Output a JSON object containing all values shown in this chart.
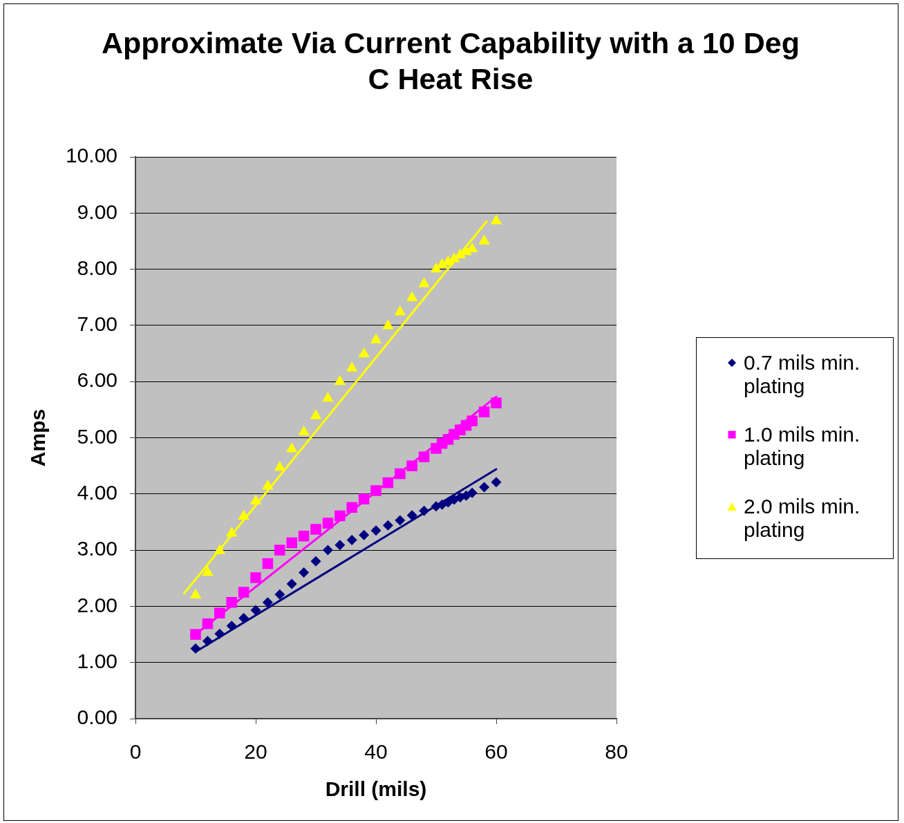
{
  "chart_data": {
    "type": "scatter",
    "title": "Approximate Via Current Capability with a 10 Deg C Heat Rise",
    "xlabel": "Drill (mils)",
    "ylabel": "Amps",
    "x": [
      10,
      12,
      14,
      16,
      18,
      20,
      22,
      24,
      26,
      28,
      30,
      32,
      34,
      36,
      38,
      40,
      42,
      44,
      46,
      48,
      50,
      51,
      52,
      53,
      54,
      55,
      56,
      58,
      60
    ],
    "series": [
      {
        "name": "0.7 mils min. plating",
        "color": "#000080",
        "marker": "diamond",
        "values": [
          1.25,
          1.38,
          1.51,
          1.65,
          1.79,
          1.93,
          2.07,
          2.21,
          2.4,
          2.6,
          2.8,
          3.0,
          3.09,
          3.18,
          3.27,
          3.35,
          3.44,
          3.53,
          3.62,
          3.7,
          3.78,
          3.81,
          3.85,
          3.9,
          3.94,
          3.97,
          4.02,
          4.12,
          4.21
        ]
      },
      {
        "name": "1.0 mils min. plating",
        "color": "#ff00ff",
        "marker": "square",
        "values": [
          1.5,
          1.69,
          1.88,
          2.07,
          2.25,
          2.51,
          2.76,
          3.0,
          3.13,
          3.25,
          3.37,
          3.48,
          3.61,
          3.76,
          3.91,
          4.06,
          4.2,
          4.36,
          4.5,
          4.66,
          4.81,
          4.9,
          4.97,
          5.06,
          5.14,
          5.22,
          5.3,
          5.46,
          5.62
        ]
      },
      {
        "name": "2.0 mils min. plating",
        "color": "#ffff00",
        "marker": "triangle",
        "values": [
          2.2,
          2.6,
          2.99,
          3.3,
          3.6,
          3.87,
          4.14,
          4.47,
          4.8,
          5.1,
          5.39,
          5.7,
          6.0,
          6.24,
          6.49,
          6.74,
          6.99,
          7.24,
          7.49,
          7.74,
          8.0,
          8.08,
          8.13,
          8.18,
          8.25,
          8.31,
          8.36,
          8.5,
          8.86
        ]
      },
      {
        "type": "line",
        "color": "#000080",
        "marker": "none",
        "x": [
          10,
          60
        ],
        "values": [
          1.19,
          4.44
        ]
      },
      {
        "type": "line",
        "color": "#ff00ff",
        "marker": "none",
        "x": [
          10,
          60
        ],
        "values": [
          1.5,
          5.73
        ]
      },
      {
        "type": "line",
        "color": "#ffff00",
        "marker": "none",
        "x": [
          8.1,
          58.4
        ],
        "values": [
          2.23,
          8.85
        ]
      }
    ],
    "xlim": [
      0,
      80
    ],
    "xticks": [
      0,
      20,
      40,
      60,
      80
    ],
    "ylim": [
      0,
      10
    ],
    "yticks": [
      {
        "value": 0,
        "label": "0.00"
      },
      {
        "value": 1,
        "label": "1.00"
      },
      {
        "value": 2,
        "label": "2.00"
      },
      {
        "value": 3,
        "label": "3.00"
      },
      {
        "value": 4,
        "label": "4.00"
      },
      {
        "value": 5,
        "label": "5.00"
      },
      {
        "value": 6,
        "label": "6.00"
      },
      {
        "value": 7,
        "label": "7.00"
      },
      {
        "value": 8,
        "label": "8.00"
      },
      {
        "value": 9,
        "label": "9.00"
      },
      {
        "value": 10,
        "label": "10.00"
      }
    ],
    "grid": "y",
    "legend": "right"
  }
}
